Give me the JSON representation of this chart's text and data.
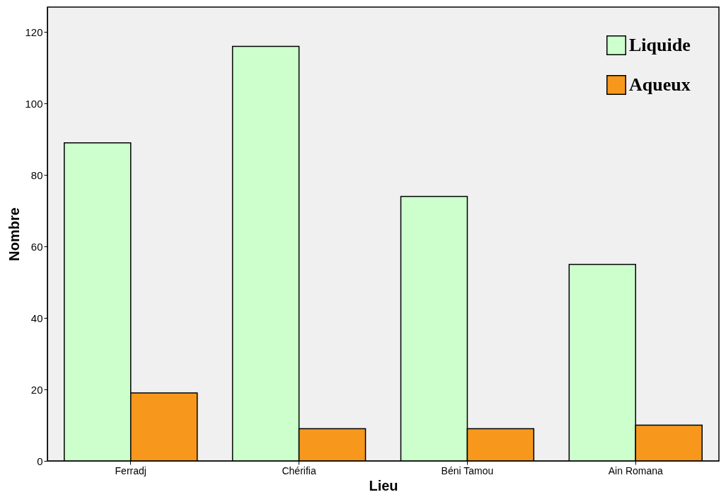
{
  "chart_data": {
    "type": "bar",
    "xlabel": "Lieu",
    "ylabel": "Nombre",
    "categories": [
      "Ferradj",
      "Chérifia",
      "Béni Tamou",
      "Ain Romana"
    ],
    "series": [
      {
        "name": "Liquide",
        "color": "#ccffcc",
        "values": [
          89,
          116,
          74,
          55
        ]
      },
      {
        "name": "Aqueux",
        "color": "#f7981d",
        "values": [
          19,
          9,
          9,
          10
        ]
      }
    ],
    "ylim": [
      0,
      127
    ],
    "yticks": [
      0,
      20,
      40,
      60,
      80,
      100,
      120
    ],
    "grid": false,
    "legend": "top right"
  }
}
